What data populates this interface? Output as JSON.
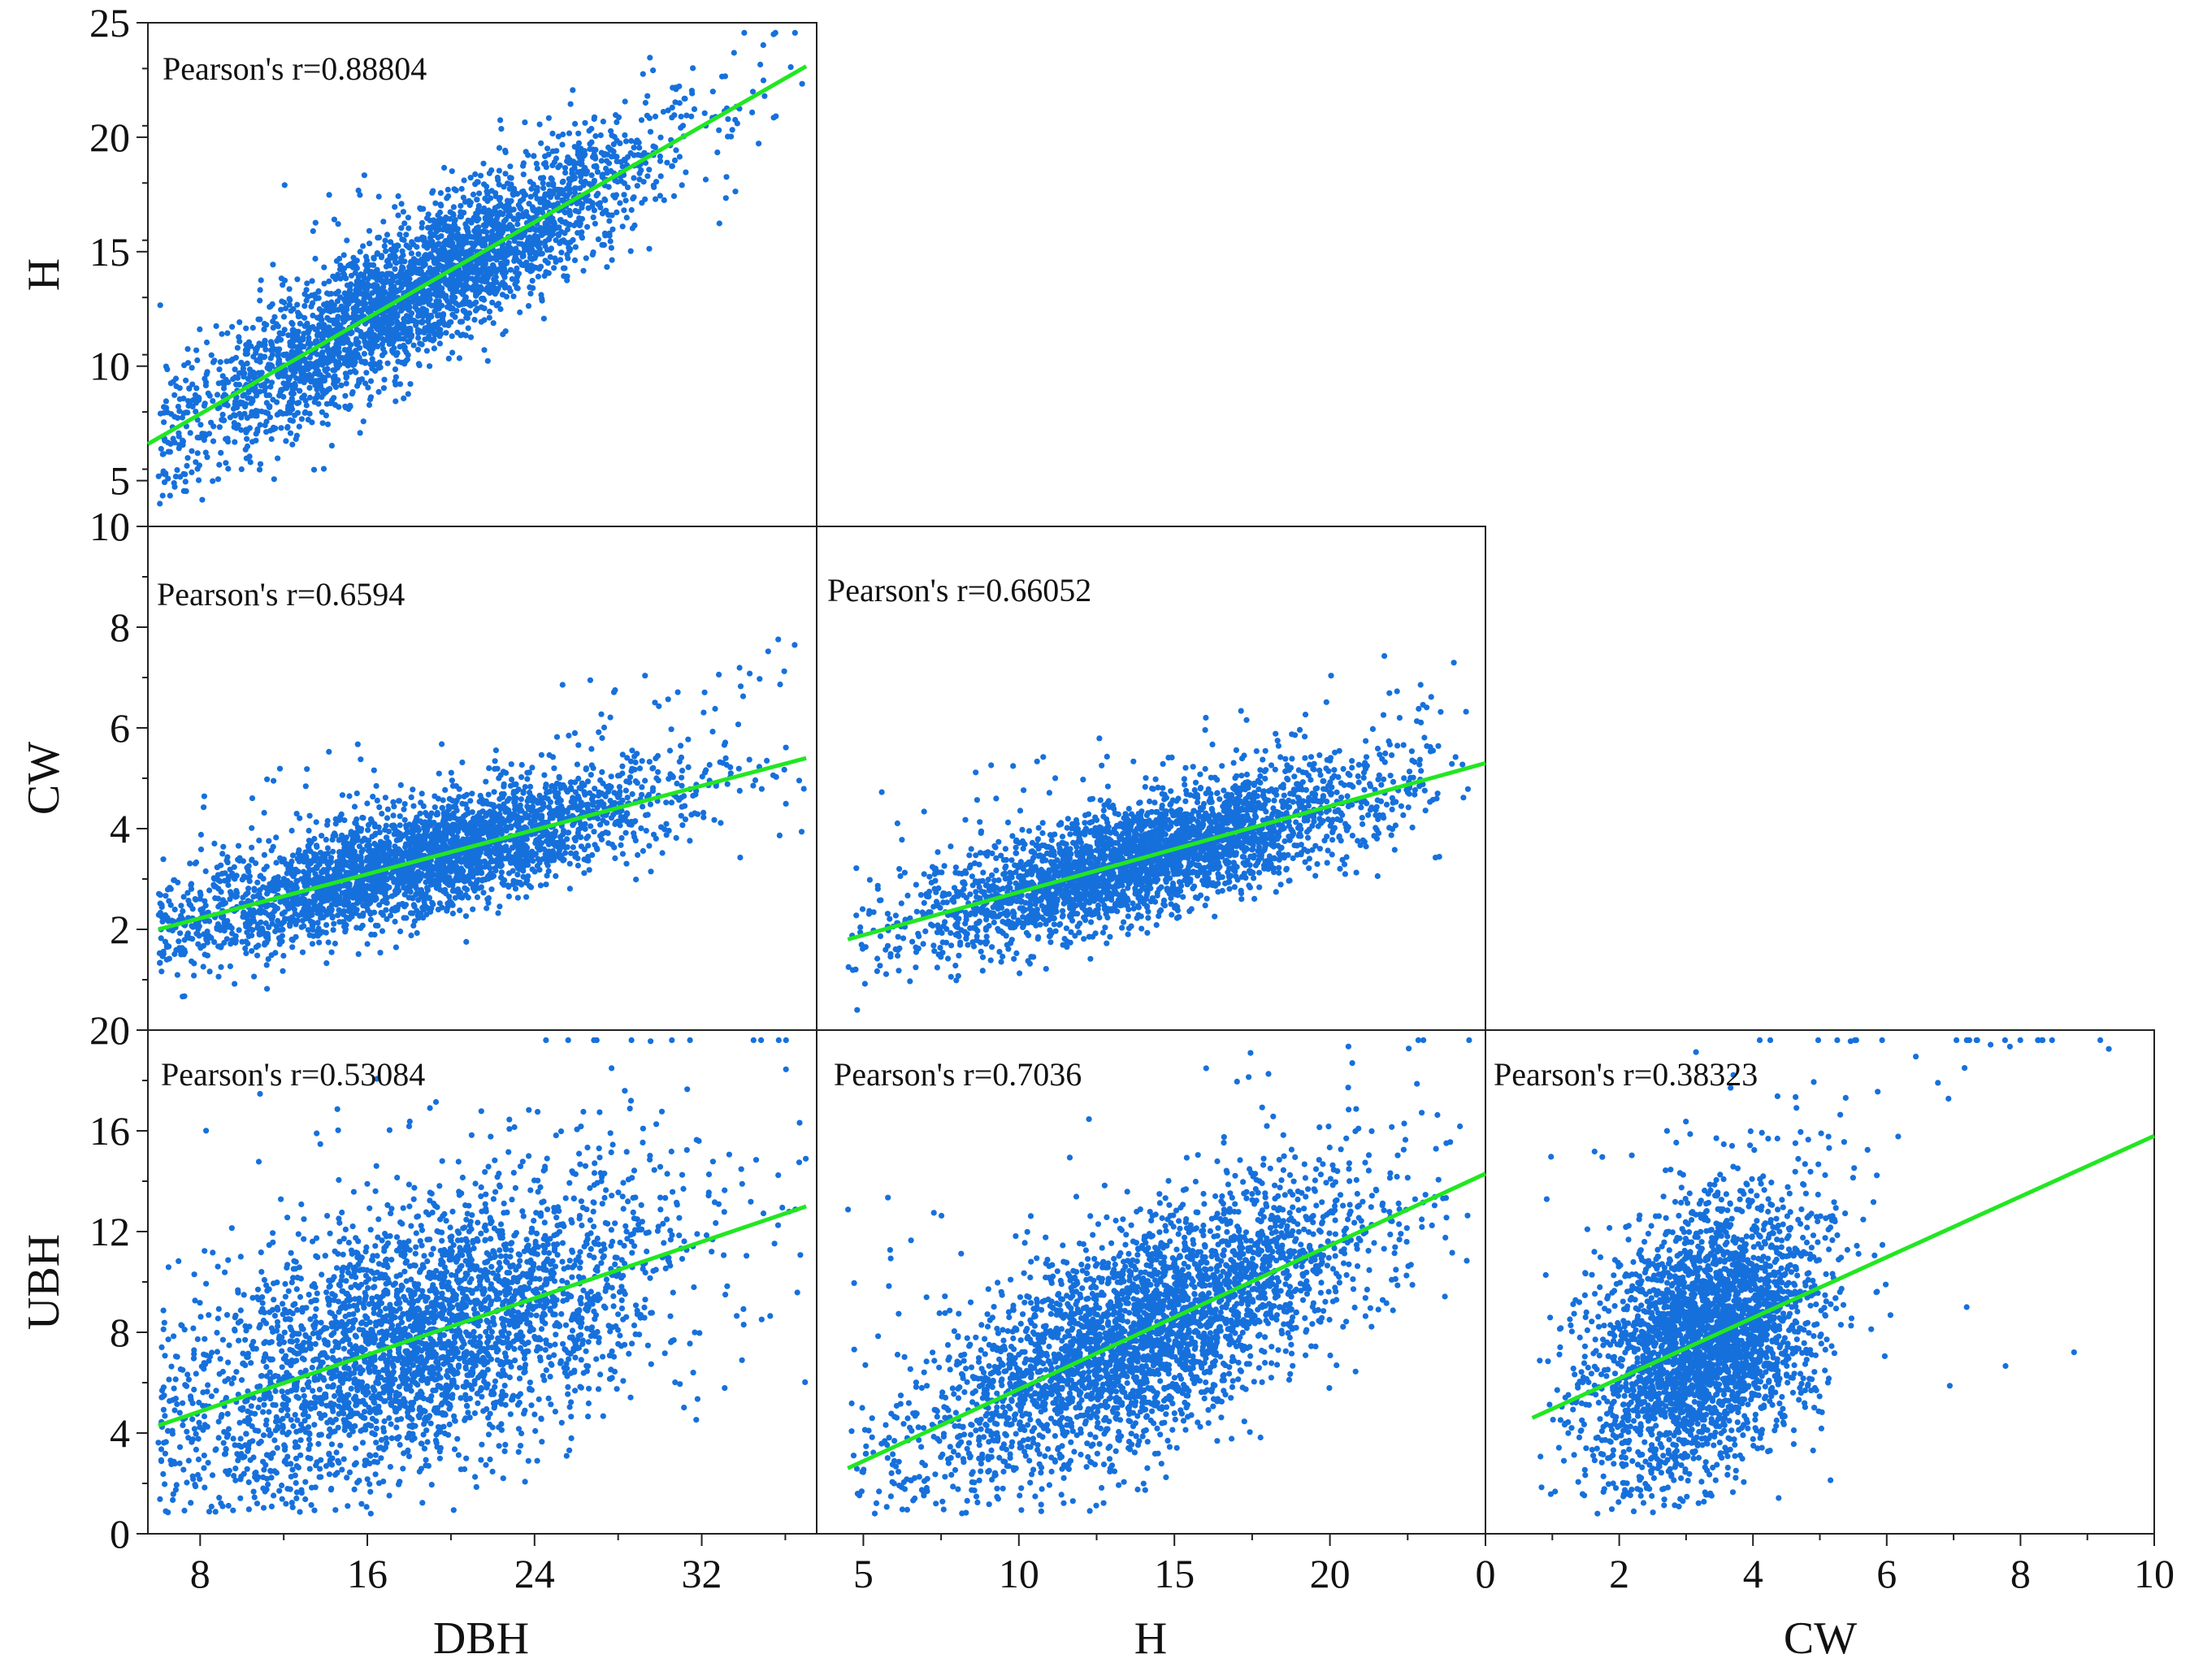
{
  "chart_data": [
    {
      "type": "scatter",
      "panel": "DBH vs H",
      "xlabel": "",
      "ylabel": "H",
      "xlim": [
        5.5,
        37.5
      ],
      "ylim": [
        3,
        25
      ],
      "x_ticks": [],
      "y_ticks": [
        5,
        10,
        15,
        20,
        25
      ],
      "annotation": "Pearson's r=0.88804",
      "fit_line": {
        "x": [
          5.5,
          37.0
        ],
        "y": [
          6.6,
          23.1
        ]
      },
      "point_cloud": {
        "n": 3200,
        "x_center": 18.5,
        "x_sd": 5.8,
        "x_min": 6,
        "x_max": 37,
        "slope": 0.524,
        "intercept": 3.72,
        "noise_sd": 1.6,
        "outliers": 20
      }
    },
    {
      "type": "scatter",
      "panel": "DBH vs CW",
      "xlabel": "",
      "ylabel": "CW",
      "xlim": [
        5.5,
        37.5
      ],
      "ylim": [
        0,
        10
      ],
      "x_ticks": [],
      "y_ticks": [
        2,
        4,
        6,
        8,
        10
      ],
      "annotation": "Pearson's r=0.6594",
      "fit_line": {
        "x": [
          6.0,
          37.0
        ],
        "y": [
          2.0,
          5.4
        ]
      },
      "point_cloud": {
        "n": 3000,
        "x_center": 18.5,
        "x_sd": 5.8,
        "x_min": 6,
        "x_max": 37,
        "slope": 0.11,
        "intercept": 1.34,
        "noise_sd": 0.55,
        "outliers": 90
      }
    },
    {
      "type": "scatter",
      "panel": "H vs CW",
      "xlabel": "",
      "ylabel": "",
      "xlim": [
        3.5,
        25
      ],
      "ylim": [
        0,
        10
      ],
      "x_ticks": [],
      "y_ticks": [],
      "annotation": "Pearson's r=0.66052",
      "fit_line": {
        "x": [
          4.5,
          25.0
        ],
        "y": [
          1.8,
          5.3
        ]
      },
      "point_cloud": {
        "n": 3000,
        "x_center": 14,
        "x_sd": 3.6,
        "x_min": 4.5,
        "x_max": 24.5,
        "slope": 0.171,
        "intercept": 1.03,
        "noise_sd": 0.55,
        "outliers": 80
      }
    },
    {
      "type": "scatter",
      "panel": "DBH vs UBH",
      "xlabel": "DBH",
      "ylabel": "UBH",
      "xlim": [
        5.5,
        37.5
      ],
      "ylim": [
        0,
        20
      ],
      "x_ticks": [
        8,
        16,
        24,
        32
      ],
      "y_ticks": [
        0,
        4,
        8,
        12,
        16,
        20
      ],
      "annotation": "Pearson's r=0.53084",
      "fit_line": {
        "x": [
          6.0,
          37.0
        ],
        "y": [
          4.3,
          13.0
        ]
      },
      "point_cloud": {
        "n": 3200,
        "x_center": 18.5,
        "x_sd": 5.8,
        "x_min": 6,
        "x_max": 37,
        "slope": 0.281,
        "intercept": 2.62,
        "noise_sd": 2.6,
        "outliers": 40
      }
    },
    {
      "type": "scatter",
      "panel": "H vs UBH",
      "xlabel": "H",
      "ylabel": "",
      "xlim": [
        3.5,
        25
      ],
      "ylim": [
        0,
        20
      ],
      "x_ticks": [
        5,
        10,
        15,
        20
      ],
      "y_ticks": [],
      "annotation": "Pearson's r=0.7036",
      "fit_line": {
        "x": [
          4.5,
          25.0
        ],
        "y": [
          2.6,
          14.3
        ]
      },
      "point_cloud": {
        "n": 3200,
        "x_center": 14,
        "x_sd": 3.6,
        "x_min": 4.5,
        "x_max": 24.5,
        "slope": 0.571,
        "intercept": 0.03,
        "noise_sd": 2.1,
        "outliers": 40
      }
    },
    {
      "type": "scatter",
      "panel": "CW vs UBH",
      "xlabel": "CW",
      "ylabel": "",
      "xlim": [
        0,
        10
      ],
      "ylim": [
        0,
        20
      ],
      "x_ticks": [
        0,
        2,
        4,
        6,
        8,
        10
      ],
      "y_ticks": [],
      "annotation": "Pearson's r=0.38323",
      "fit_line": {
        "x": [
          0.7,
          10.0
        ],
        "y": [
          4.6,
          15.8
        ]
      },
      "point_cloud": {
        "n": 3000,
        "x_center": 3.3,
        "x_sd": 0.85,
        "x_min": 0.8,
        "x_max": 9.5,
        "slope": 1.2,
        "intercept": 3.76,
        "noise_sd": 2.6,
        "outliers": 70
      }
    }
  ],
  "colors": {
    "points": "#1670dc",
    "fit_line": "#22e622",
    "frame": "#222222",
    "background": "#ffffff"
  }
}
